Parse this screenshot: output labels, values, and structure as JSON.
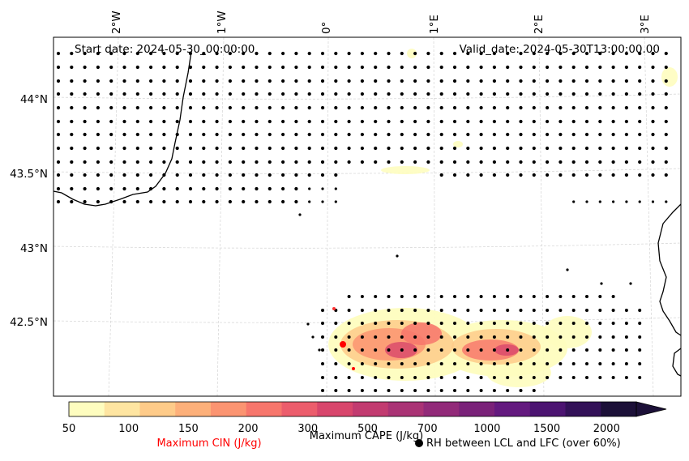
{
  "map": {
    "start_label": "Start date: 2024-05-30_00:00:00",
    "valid_label": "Valid_date: 2024-05-30T13:00:00.00",
    "lon_labels": [
      "2°W",
      "1°W",
      "0°",
      "1°E",
      "2°E",
      "3°E"
    ],
    "lat_labels": [
      "44°N",
      "43.5°N",
      "43°N",
      "42.5°N"
    ]
  },
  "colorbar": {
    "ticks": [
      "50",
      "100",
      "150",
      "200",
      "300",
      "500",
      "700",
      "1000",
      "1500",
      "2000"
    ],
    "colors": [
      "#fefdbf",
      "#fee5a1",
      "#fecb89",
      "#fdb07a",
      "#fb9471",
      "#f7766c",
      "#ec5d6c",
      "#d8466c",
      "#c23b70",
      "#aa3375",
      "#922a79",
      "#7a2279",
      "#641a7f",
      "#4c1471",
      "#331158",
      "#1c1038"
    ],
    "cape_label": "Maximum CAPE (J/kg)",
    "cin_label": "Maximum CIN (J/kg)",
    "rh_label": "RH between LCL and LFC (over 60%)"
  },
  "colors": {
    "cin": "#ff0000",
    "coast": "#000000",
    "grid": "#cccccc"
  }
}
